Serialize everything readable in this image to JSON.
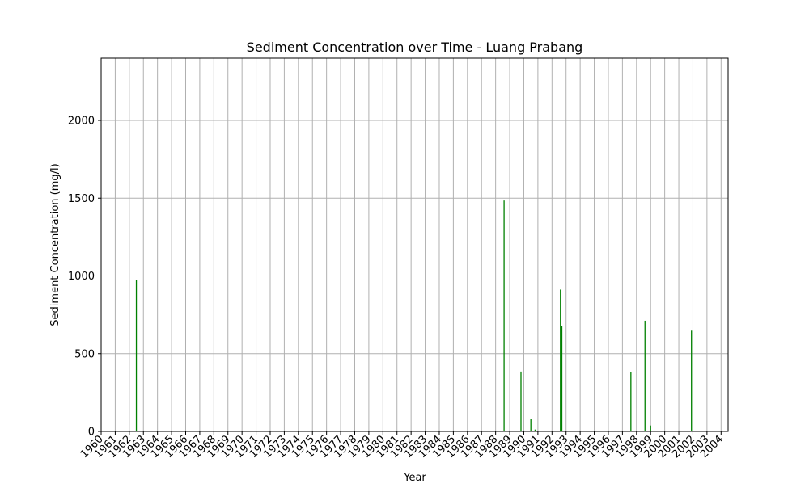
{
  "chart_data": {
    "type": "bar",
    "title": "Sediment Concentration over Time - Luang Prabang",
    "xlabel": "Year",
    "ylabel": "Sediment Concentration (mg/l)",
    "ylim": [
      0,
      2400
    ],
    "yticks": [
      0,
      500,
      1000,
      1500,
      2000
    ],
    "xlim": [
      1960,
      2004.5
    ],
    "xticks": [
      "1960",
      "1961",
      "1962",
      "1963",
      "1964",
      "1965",
      "1966",
      "1967",
      "1968",
      "1969",
      "1970",
      "1971",
      "1972",
      "1973",
      "1974",
      "1975",
      "1976",
      "1977",
      "1978",
      "1979",
      "1980",
      "1981",
      "1982",
      "1983",
      "1984",
      "1985",
      "1986",
      "1987",
      "1988",
      "1989",
      "1990",
      "1991",
      "1992",
      "1993",
      "1994",
      "1995",
      "1996",
      "1997",
      "1998",
      "1999",
      "2000",
      "2001",
      "2002",
      "2003",
      "2004"
    ],
    "grid": true,
    "bar_color": "#008000",
    "series": [
      {
        "x": [
          1962.5,
          1988.6,
          1989.8,
          1990.5,
          1990.8,
          1992.6,
          1992.7,
          1997.6,
          1998.6,
          1999.0,
          2001.9
        ],
        "values": [
          975,
          1485,
          385,
          80,
          12,
          912,
          680,
          380,
          712,
          38,
          648
        ]
      }
    ]
  }
}
